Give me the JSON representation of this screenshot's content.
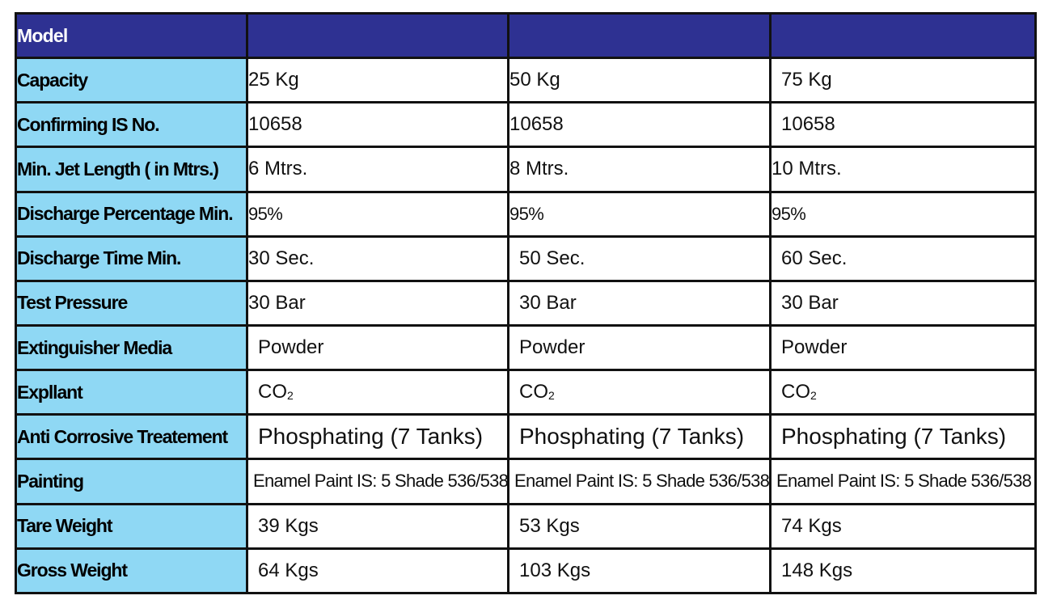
{
  "header": {
    "label": "Model",
    "models": [
      "",
      "",
      ""
    ]
  },
  "rows": [
    {
      "label": "Capacity",
      "values": [
        "25 Kg",
        "50 Kg",
        "75 Kg"
      ]
    },
    {
      "label": "Confirming IS No.",
      "values": [
        "10658",
        "10658",
        "10658"
      ]
    },
    {
      "label": "Min. Jet Length ( in Mtrs.)",
      "values": [
        "6 Mtrs.",
        "8 Mtrs.",
        "10 Mtrs."
      ]
    },
    {
      "label": "Discharge Percentage Min.",
      "values": [
        "95%",
        "95%",
        "95%"
      ]
    },
    {
      "label": "Discharge Time Min.",
      "values": [
        "30 Sec.",
        "50 Sec.",
        "60 Sec."
      ]
    },
    {
      "label": "Test Pressure",
      "values": [
        "30 Bar",
        "30 Bar",
        "30 Bar"
      ]
    },
    {
      "label": "Extinguisher Media",
      "values": [
        "Powder",
        "Powder",
        "Powder"
      ]
    },
    {
      "label": "Expllant",
      "values": [
        "CO",
        "CO",
        "CO"
      ],
      "subscript": [
        "2",
        "2",
        "2"
      ]
    },
    {
      "label": "Anti Corrosive Treatement",
      "values": [
        "Phosphating (7 Tanks)",
        "Phosphating (7 Tanks)",
        "Phosphating (7 Tanks)"
      ]
    },
    {
      "label": "Painting",
      "values": [
        "Enamel Paint IS: 5 Shade 536/538",
        "Enamel Paint IS: 5 Shade 536/538",
        "Enamel Paint IS: 5 Shade 536/538"
      ]
    },
    {
      "label": "Tare Weight",
      "values": [
        "39 Kgs",
        "53 Kgs",
        "74 Kgs"
      ]
    },
    {
      "label": "Gross Weight",
      "values": [
        "64 Kgs",
        "103 Kgs",
        "148 Kgs"
      ]
    }
  ],
  "colors": {
    "header_bg": "#2e3192",
    "label_bg": "#8fd8f4",
    "border": "#111111"
  }
}
